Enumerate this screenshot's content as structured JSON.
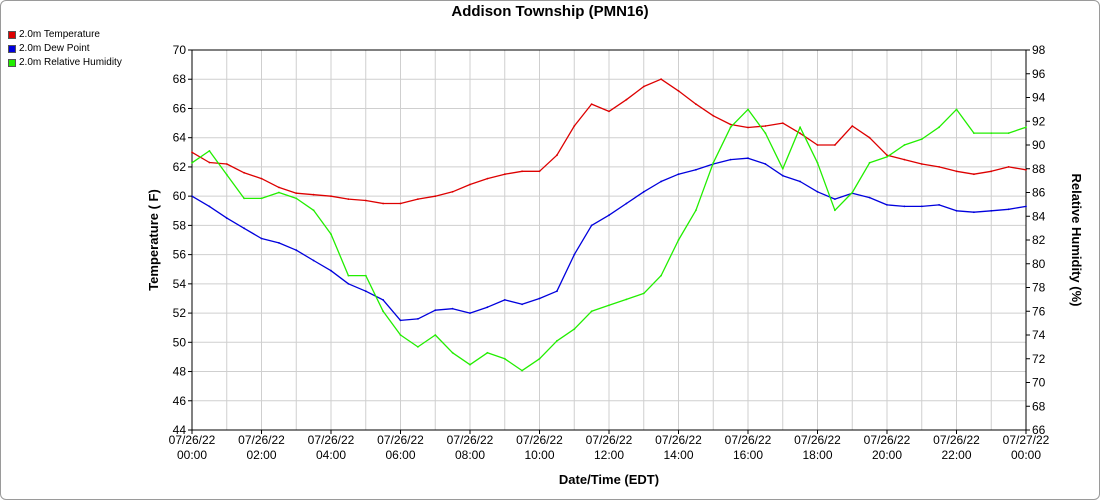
{
  "chart_data": {
    "type": "line",
    "title": "Addison Township (PMN16)",
    "xlabel": "Date/Time (EDT)",
    "ylabel_left": "Temperature ( F)",
    "ylabel_right": "Relative Humidity (%)",
    "ylim_left": [
      44,
      70
    ],
    "ylim_right": [
      66,
      98
    ],
    "yticks_left": [
      "44",
      "46",
      "48",
      "50",
      "52",
      "54",
      "56",
      "58",
      "60",
      "62",
      "64",
      "66",
      "68",
      "70"
    ],
    "yticks_right": [
      "66",
      "68",
      "70",
      "72",
      "74",
      "76",
      "78",
      "80",
      "82",
      "84",
      "86",
      "88",
      "90",
      "92",
      "94",
      "96",
      "98"
    ],
    "xticks": [
      {
        "date": "07/26/22",
        "time": "00:00"
      },
      {
        "date": "07/26/22",
        "time": "02:00"
      },
      {
        "date": "07/26/22",
        "time": "04:00"
      },
      {
        "date": "07/26/22",
        "time": "06:00"
      },
      {
        "date": "07/26/22",
        "time": "08:00"
      },
      {
        "date": "07/26/22",
        "time": "10:00"
      },
      {
        "date": "07/26/22",
        "time": "12:00"
      },
      {
        "date": "07/26/22",
        "time": "14:00"
      },
      {
        "date": "07/26/22",
        "time": "16:00"
      },
      {
        "date": "07/26/22",
        "time": "18:00"
      },
      {
        "date": "07/26/22",
        "time": "20:00"
      },
      {
        "date": "07/26/22",
        "time": "22:00"
      },
      {
        "date": "07/27/22",
        "time": "00:00"
      }
    ],
    "grid": true,
    "legend_position": "top-left",
    "x_hours": [
      0,
      0.5,
      1,
      1.5,
      2,
      2.5,
      3,
      3.5,
      4,
      4.5,
      5,
      5.5,
      6,
      6.5,
      7,
      7.5,
      8,
      8.5,
      9,
      9.5,
      10,
      10.5,
      11,
      11.5,
      12,
      12.5,
      13,
      13.5,
      14,
      14.5,
      15,
      15.5,
      16,
      16.5,
      17,
      17.5,
      18,
      18.5,
      19,
      19.5,
      20,
      20.5,
      21,
      21.5,
      22,
      22.5,
      23,
      23.5,
      24
    ],
    "series": [
      {
        "name": "2.0m Temperature",
        "color": "#dd0000",
        "axis": "left",
        "values": [
          63.0,
          62.3,
          62.2,
          61.6,
          61.2,
          60.6,
          60.2,
          60.1,
          60.0,
          59.8,
          59.7,
          59.5,
          59.5,
          59.8,
          60.0,
          60.3,
          60.8,
          61.2,
          61.5,
          61.7,
          61.7,
          62.8,
          64.8,
          66.3,
          65.8,
          66.6,
          67.5,
          68.0,
          67.2,
          66.3,
          65.5,
          64.9,
          64.7,
          64.8,
          65.0,
          64.3,
          63.5,
          63.5,
          64.8,
          64.0,
          62.8,
          62.5,
          62.2,
          62.0,
          61.7,
          61.5,
          61.7,
          62.0,
          61.8
        ]
      },
      {
        "name": "2.0m Dew Point",
        "color": "#0000dd",
        "axis": "left",
        "values": [
          60.0,
          59.3,
          58.5,
          57.8,
          57.1,
          56.8,
          56.3,
          55.6,
          54.9,
          54.0,
          53.5,
          52.9,
          51.5,
          51.6,
          52.2,
          52.3,
          52.0,
          52.4,
          52.9,
          52.6,
          53.0,
          53.5,
          56.0,
          58.0,
          58.7,
          59.5,
          60.3,
          61.0,
          61.5,
          61.8,
          62.2,
          62.5,
          62.6,
          62.2,
          61.4,
          61.0,
          60.3,
          59.8,
          60.2,
          59.9,
          59.4,
          59.3,
          59.3,
          59.4,
          59.0,
          58.9,
          59.0,
          59.1,
          59.3
        ]
      },
      {
        "name": "2.0m Relative Humidity",
        "color": "#22ee00",
        "axis": "right",
        "values": [
          88.5,
          89.5,
          87.5,
          85.5,
          85.5,
          86.0,
          85.5,
          84.5,
          82.5,
          79.0,
          79.0,
          76.0,
          74.0,
          73.0,
          74.0,
          72.5,
          71.5,
          72.5,
          72.0,
          71.0,
          72.0,
          73.5,
          74.5,
          76.0,
          76.5,
          77.0,
          77.5,
          79.0,
          82.0,
          84.5,
          88.5,
          91.5,
          93.0,
          91.0,
          88.0,
          91.5,
          88.5,
          84.5,
          86.0,
          88.5,
          89.0,
          90.0,
          90.5,
          91.5,
          93.0,
          91.0,
          91.0,
          91.0,
          91.5
        ]
      }
    ]
  }
}
